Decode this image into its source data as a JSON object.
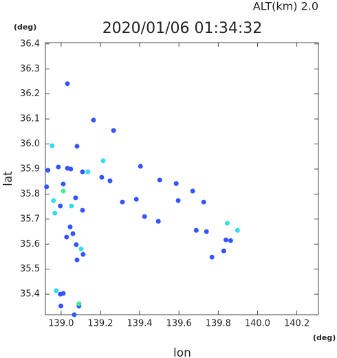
{
  "chart_data": {
    "type": "scatter",
    "title": "2020/01/06 01:34:32",
    "annotation": "ALT(km) 2.0",
    "x_unit": "(deg)",
    "y_unit": "(deg)",
    "xlabel": "lon",
    "ylabel": "lat",
    "xlim": [
      138.92,
      140.31
    ],
    "ylim": [
      35.318,
      36.405
    ],
    "xticks": [
      {
        "value": 139,
        "label": "139.0"
      },
      139.2,
      139.4,
      139.6,
      139.8,
      {
        "value": 140,
        "label": "140.0"
      },
      140.2
    ],
    "yticks": [
      35.4,
      35.5,
      35.6,
      35.7,
      35.8,
      35.9,
      {
        "value": 36,
        "label": "36.0"
      },
      36.1,
      36.2,
      36.3,
      36.4
    ],
    "series": [
      {
        "color": "#3355ff",
        "x": [
          139.032,
          139.165,
          139.267,
          138.933,
          138.986,
          139.032,
          139.049,
          139.109,
          139.207,
          139.249,
          139.404,
          139.502,
          139.586,
          139.67,
          139.596,
          139.312,
          139.383,
          139.425,
          139.495,
          139.726,
          139.688,
          139.74,
          139.768,
          139.828,
          139.839,
          139.863,
          139.046,
          139.06,
          139.028,
          139.077,
          139.112,
          139.081,
          139.109,
          139.074,
          139.011,
          138.926,
          138.996,
          139.011,
          138.999,
          139.091,
          139.067,
          138.996,
          139.081
        ],
        "values": [
          36.241,
          36.095,
          36.054,
          35.895,
          35.908,
          35.903,
          35.9,
          35.889,
          35.867,
          35.853,
          35.911,
          35.856,
          35.842,
          35.812,
          35.774,
          35.768,
          35.779,
          35.71,
          35.691,
          35.768,
          35.655,
          35.65,
          35.548,
          35.573,
          35.617,
          35.614,
          35.669,
          35.642,
          35.628,
          35.598,
          35.559,
          35.537,
          35.735,
          35.785,
          35.84,
          35.829,
          35.4,
          35.403,
          35.353,
          35.353,
          35.318,
          35.752,
          35.991
        ]
      },
      {
        "color": "#33ddee",
        "x": [
          138.954,
          139.214,
          139.137,
          138.961,
          138.968,
          139.053,
          139.102,
          139.846,
          139.898,
          138.975
        ],
        "values": [
          35.993,
          35.933,
          35.889,
          35.774,
          35.724,
          35.752,
          35.581,
          35.683,
          35.655,
          35.414
        ]
      },
      {
        "color": "#44ee88",
        "x": [
          139.011,
          139.091
        ],
        "values": [
          35.812,
          35.362
        ]
      }
    ]
  }
}
